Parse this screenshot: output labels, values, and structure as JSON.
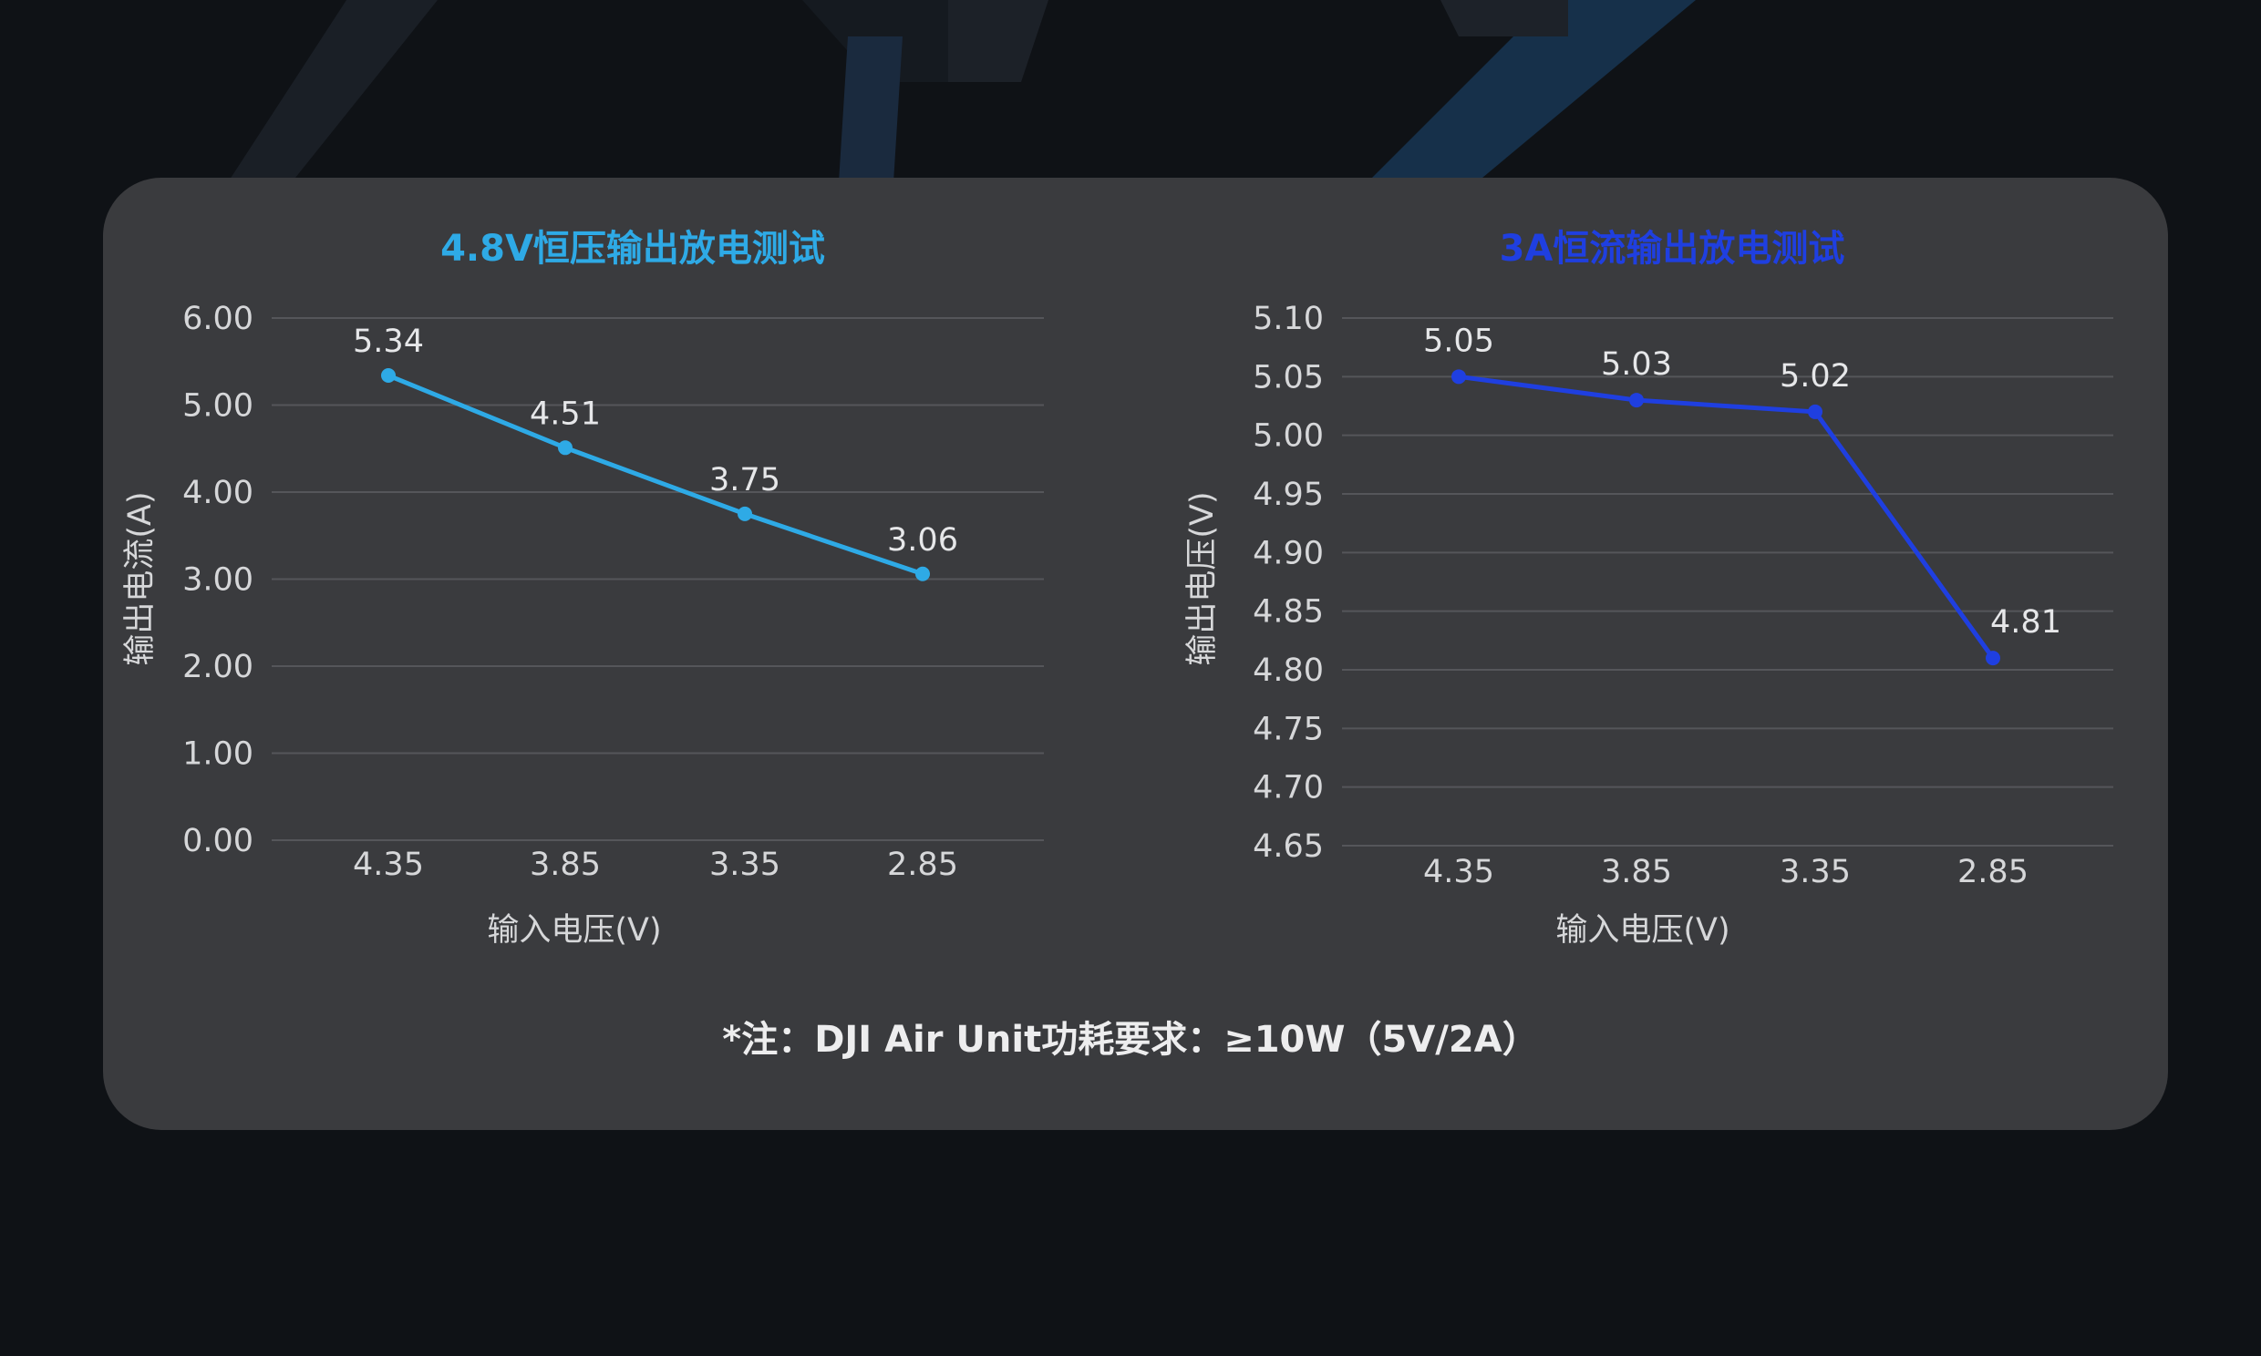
{
  "colors": {
    "background": "#0f1216",
    "panel": "#3a3b3e",
    "chart1_series": "#2eaae6",
    "chart2_series": "#1f3fe0",
    "grid": "#55565a"
  },
  "note": "*注：DJI Air Unit功耗要求：≥10W（5V/2A）",
  "chart_data": [
    {
      "type": "line",
      "title": "4.8V恒压输出放电测试",
      "xlabel": "输入电压(V)",
      "ylabel": "输出电流(A)",
      "categories": [
        "4.35",
        "3.85",
        "3.35",
        "2.85"
      ],
      "values": [
        5.34,
        4.51,
        3.75,
        3.06
      ],
      "point_labels": [
        "5.34",
        "4.51",
        "3.75",
        "3.06"
      ],
      "yticks": [
        "0.00",
        "1.00",
        "2.00",
        "3.00",
        "4.00",
        "5.00",
        "6.00"
      ],
      "ylim": [
        0,
        6
      ],
      "grid": true,
      "legend": "none"
    },
    {
      "type": "line",
      "title": "3A恒流输出放电测试",
      "xlabel": "输入电压(V)",
      "ylabel": "输出电压(V)",
      "categories": [
        "4.35",
        "3.85",
        "3.35",
        "2.85"
      ],
      "values": [
        5.05,
        5.03,
        5.02,
        4.81
      ],
      "point_labels": [
        "5.05",
        "5.03",
        "5.02",
        "4.81"
      ],
      "yticks": [
        "4.65",
        "4.70",
        "4.75",
        "4.80",
        "4.85",
        "4.90",
        "4.95",
        "5.00",
        "5.05",
        "5.10"
      ],
      "ylim": [
        4.65,
        5.1
      ],
      "grid": true,
      "legend": "none"
    }
  ]
}
